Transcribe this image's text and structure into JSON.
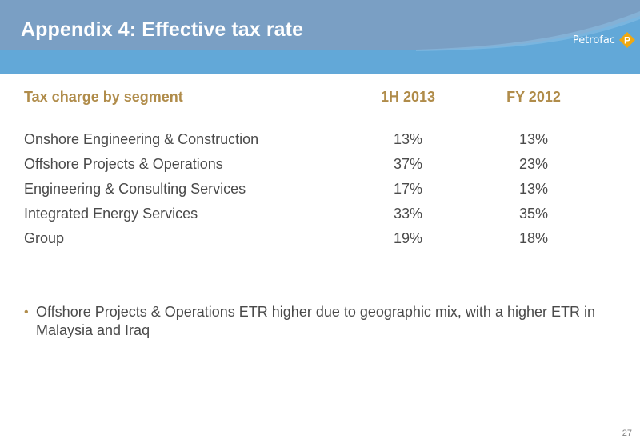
{
  "slide": {
    "title": "Appendix 4: Effective tax rate",
    "logo_text": "Petrofac",
    "page_number": "27"
  },
  "table": {
    "headers": [
      "Tax charge by segment",
      "1H 2013",
      "FY 2012"
    ],
    "rows": [
      {
        "label": "Onshore Engineering & Construction",
        "h1_2013": "13%",
        "fy_2012": "13%"
      },
      {
        "label": "Offshore Projects & Operations",
        "h1_2013": "37%",
        "fy_2012": "23%"
      },
      {
        "label": "Engineering & Consulting Services",
        "h1_2013": "17%",
        "fy_2012": "13%"
      },
      {
        "label": "Integrated Energy Services",
        "h1_2013": "33%",
        "fy_2012": "35%"
      },
      {
        "label": "Group",
        "h1_2013": "19%",
        "fy_2012": "18%"
      }
    ]
  },
  "notes": [
    "Offshore Projects & Operations ETR higher due to geographic mix, with a higher ETR in Malaysia and Iraq"
  ],
  "colors": {
    "banner_top": "#7a9fc4",
    "banner_band": "#62a8d8",
    "header_text": "#b08c4a",
    "body_text": "#4a4a4a",
    "logo_accent": "#f0a810"
  }
}
